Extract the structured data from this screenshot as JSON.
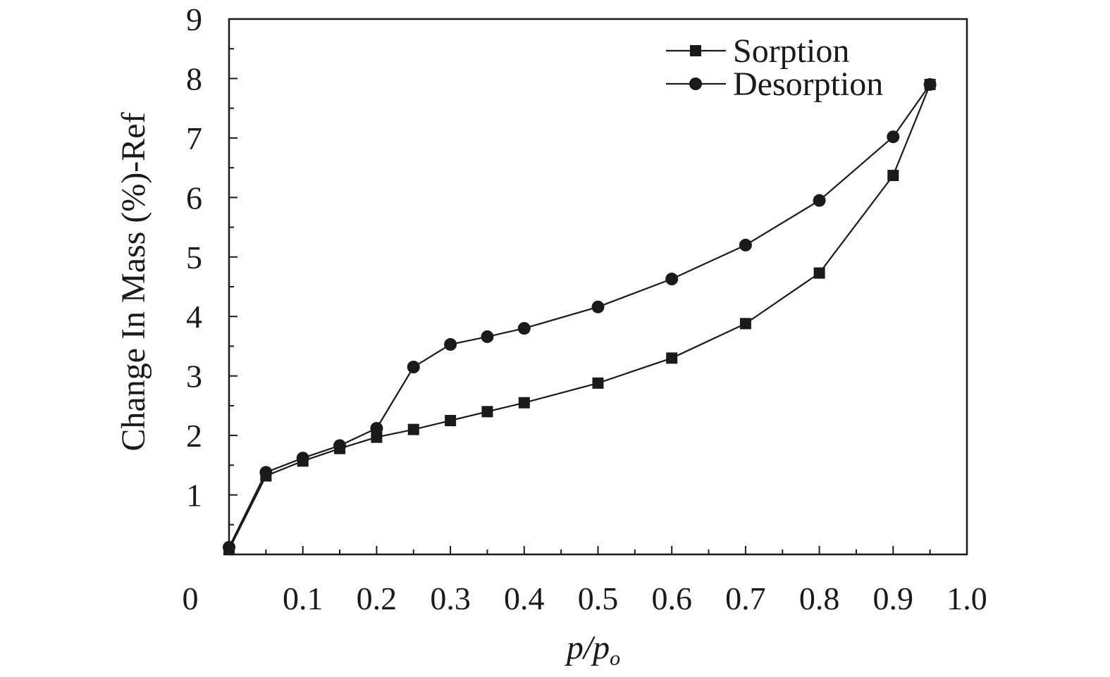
{
  "chart_data": {
    "type": "line",
    "xlabel": "p/p",
    "xlabel_subscript": "o",
    "ylabel": "Change In Mass (%)-Ref",
    "xlim": [
      0,
      1.0
    ],
    "ylim": [
      0,
      9
    ],
    "x_tick_labels": [
      "0",
      "0.1",
      "0.2",
      "0.3",
      "0.4",
      "0.5",
      "0.6",
      "0.7",
      "0.8",
      "0.9",
      "1.0"
    ],
    "y_tick_labels": [
      "1",
      "2",
      "3",
      "4",
      "5",
      "6",
      "7",
      "8",
      "9"
    ],
    "grid": false,
    "legend_position": "top-right",
    "series": [
      {
        "name": "Sorption",
        "marker": "square",
        "color": "#1a1a1a",
        "x": [
          0.0,
          0.05,
          0.1,
          0.15,
          0.2,
          0.25,
          0.3,
          0.35,
          0.4,
          0.5,
          0.6,
          0.7,
          0.8,
          0.9,
          0.95
        ],
        "y": [
          0.08,
          1.32,
          1.57,
          1.78,
          1.97,
          2.1,
          2.25,
          2.4,
          2.55,
          2.88,
          3.3,
          3.88,
          4.73,
          6.37,
          7.9
        ]
      },
      {
        "name": "Desorption",
        "marker": "circle",
        "color": "#1a1a1a",
        "x": [
          0.0,
          0.05,
          0.1,
          0.15,
          0.2,
          0.25,
          0.3,
          0.35,
          0.4,
          0.5,
          0.6,
          0.7,
          0.8,
          0.9,
          0.95
        ],
        "y": [
          0.12,
          1.38,
          1.62,
          1.83,
          2.12,
          3.15,
          3.53,
          3.66,
          3.8,
          4.16,
          4.63,
          5.2,
          5.95,
          7.02,
          7.9
        ]
      }
    ]
  }
}
